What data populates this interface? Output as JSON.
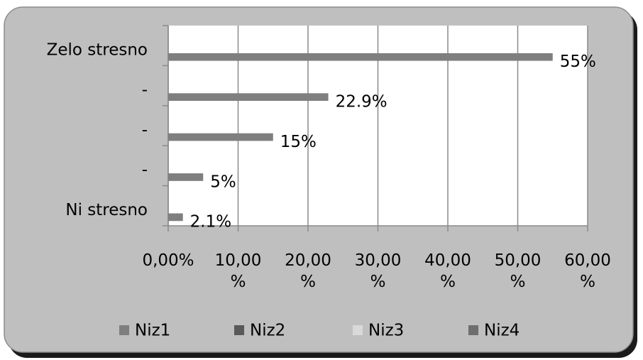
{
  "chart_data": {
    "type": "bar",
    "orientation": "horizontal",
    "categories": [
      "Zelo stresno",
      "-",
      "-",
      "-",
      "Ni stresno"
    ],
    "series": [
      {
        "name": "Niz1",
        "color": "#7f7f7f",
        "values": [
          55,
          22.9,
          15,
          5,
          2.1
        ],
        "value_labels": [
          "55%",
          "22.9%",
          "15%",
          "5%",
          "2.1%"
        ]
      },
      {
        "name": "Niz2",
        "color": "#595959",
        "values": [
          null,
          null,
          null,
          null,
          null
        ]
      },
      {
        "name": "Niz3",
        "color": "#d9d9d9",
        "values": [
          null,
          null,
          null,
          null,
          null
        ]
      },
      {
        "name": "Niz4",
        "color": "#6e6e6e",
        "values": [
          null,
          null,
          null,
          null,
          null
        ]
      }
    ],
    "xlim": [
      0,
      60
    ],
    "xticks": [
      {
        "value": 0,
        "label": "0,00%"
      },
      {
        "value": 10,
        "label": "10,00 %"
      },
      {
        "value": 20,
        "label": "20,00 %"
      },
      {
        "value": 30,
        "label": "30,00 %"
      },
      {
        "value": 40,
        "label": "40,00 %"
      },
      {
        "value": 50,
        "label": "50,00 %"
      },
      {
        "value": 60,
        "label": "60,00 %"
      }
    ],
    "grid": true,
    "legend": "bottom"
  }
}
